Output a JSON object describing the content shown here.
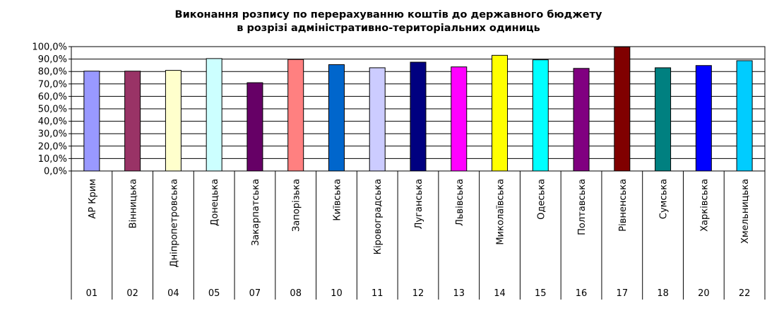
{
  "chart_data": {
    "type": "bar",
    "title_lines": [
      "Виконання розпису по перерахуванню коштів до державного бюджету",
      "в розрізі адміністративно-територіальних одиниць"
    ],
    "ylim": [
      0,
      100
    ],
    "y_ticks": [
      "0,0%",
      "10,0%",
      "20,0%",
      "30,0%",
      "40,0%",
      "50,0%",
      "60,0%",
      "70,0%",
      "80,0%",
      "90,0%",
      "100,0%"
    ],
    "grid": true,
    "categories": [
      {
        "name": "АР Крим",
        "code": "01"
      },
      {
        "name": "Вінницька",
        "code": "02"
      },
      {
        "name": "Дніпропетровська",
        "code": "04"
      },
      {
        "name": "Донецька",
        "code": "05"
      },
      {
        "name": "Закарпатська",
        "code": "07"
      },
      {
        "name": "Запорізька",
        "code": "08"
      },
      {
        "name": "Київська",
        "code": "10"
      },
      {
        "name": "Кіровоградська",
        "code": "11"
      },
      {
        "name": "Луганська",
        "code": "12"
      },
      {
        "name": "Львівська",
        "code": "13"
      },
      {
        "name": "Миколаївська",
        "code": "14"
      },
      {
        "name": "Одеська",
        "code": "15"
      },
      {
        "name": "Полтавська",
        "code": "16"
      },
      {
        "name": "Рівненська",
        "code": "17"
      },
      {
        "name": "Сумська",
        "code": "18"
      },
      {
        "name": "Харківська",
        "code": "20"
      },
      {
        "name": "Хмельницька",
        "code": "22"
      }
    ],
    "values": [
      80.3,
      80.3,
      80.9,
      90.4,
      71.0,
      89.7,
      85.5,
      83.0,
      87.5,
      83.7,
      93.0,
      89.4,
      82.5,
      99.8,
      83.0,
      84.8,
      88.7
    ],
    "colors": [
      "#9999ff",
      "#993366",
      "#ffffcc",
      "#ccffff",
      "#660066",
      "#ff8080",
      "#0066cc",
      "#ccccff",
      "#000080",
      "#ff00ff",
      "#ffff00",
      "#00ffff",
      "#800080",
      "#800000",
      "#008080",
      "#0000ff",
      "#00ccff"
    ]
  }
}
